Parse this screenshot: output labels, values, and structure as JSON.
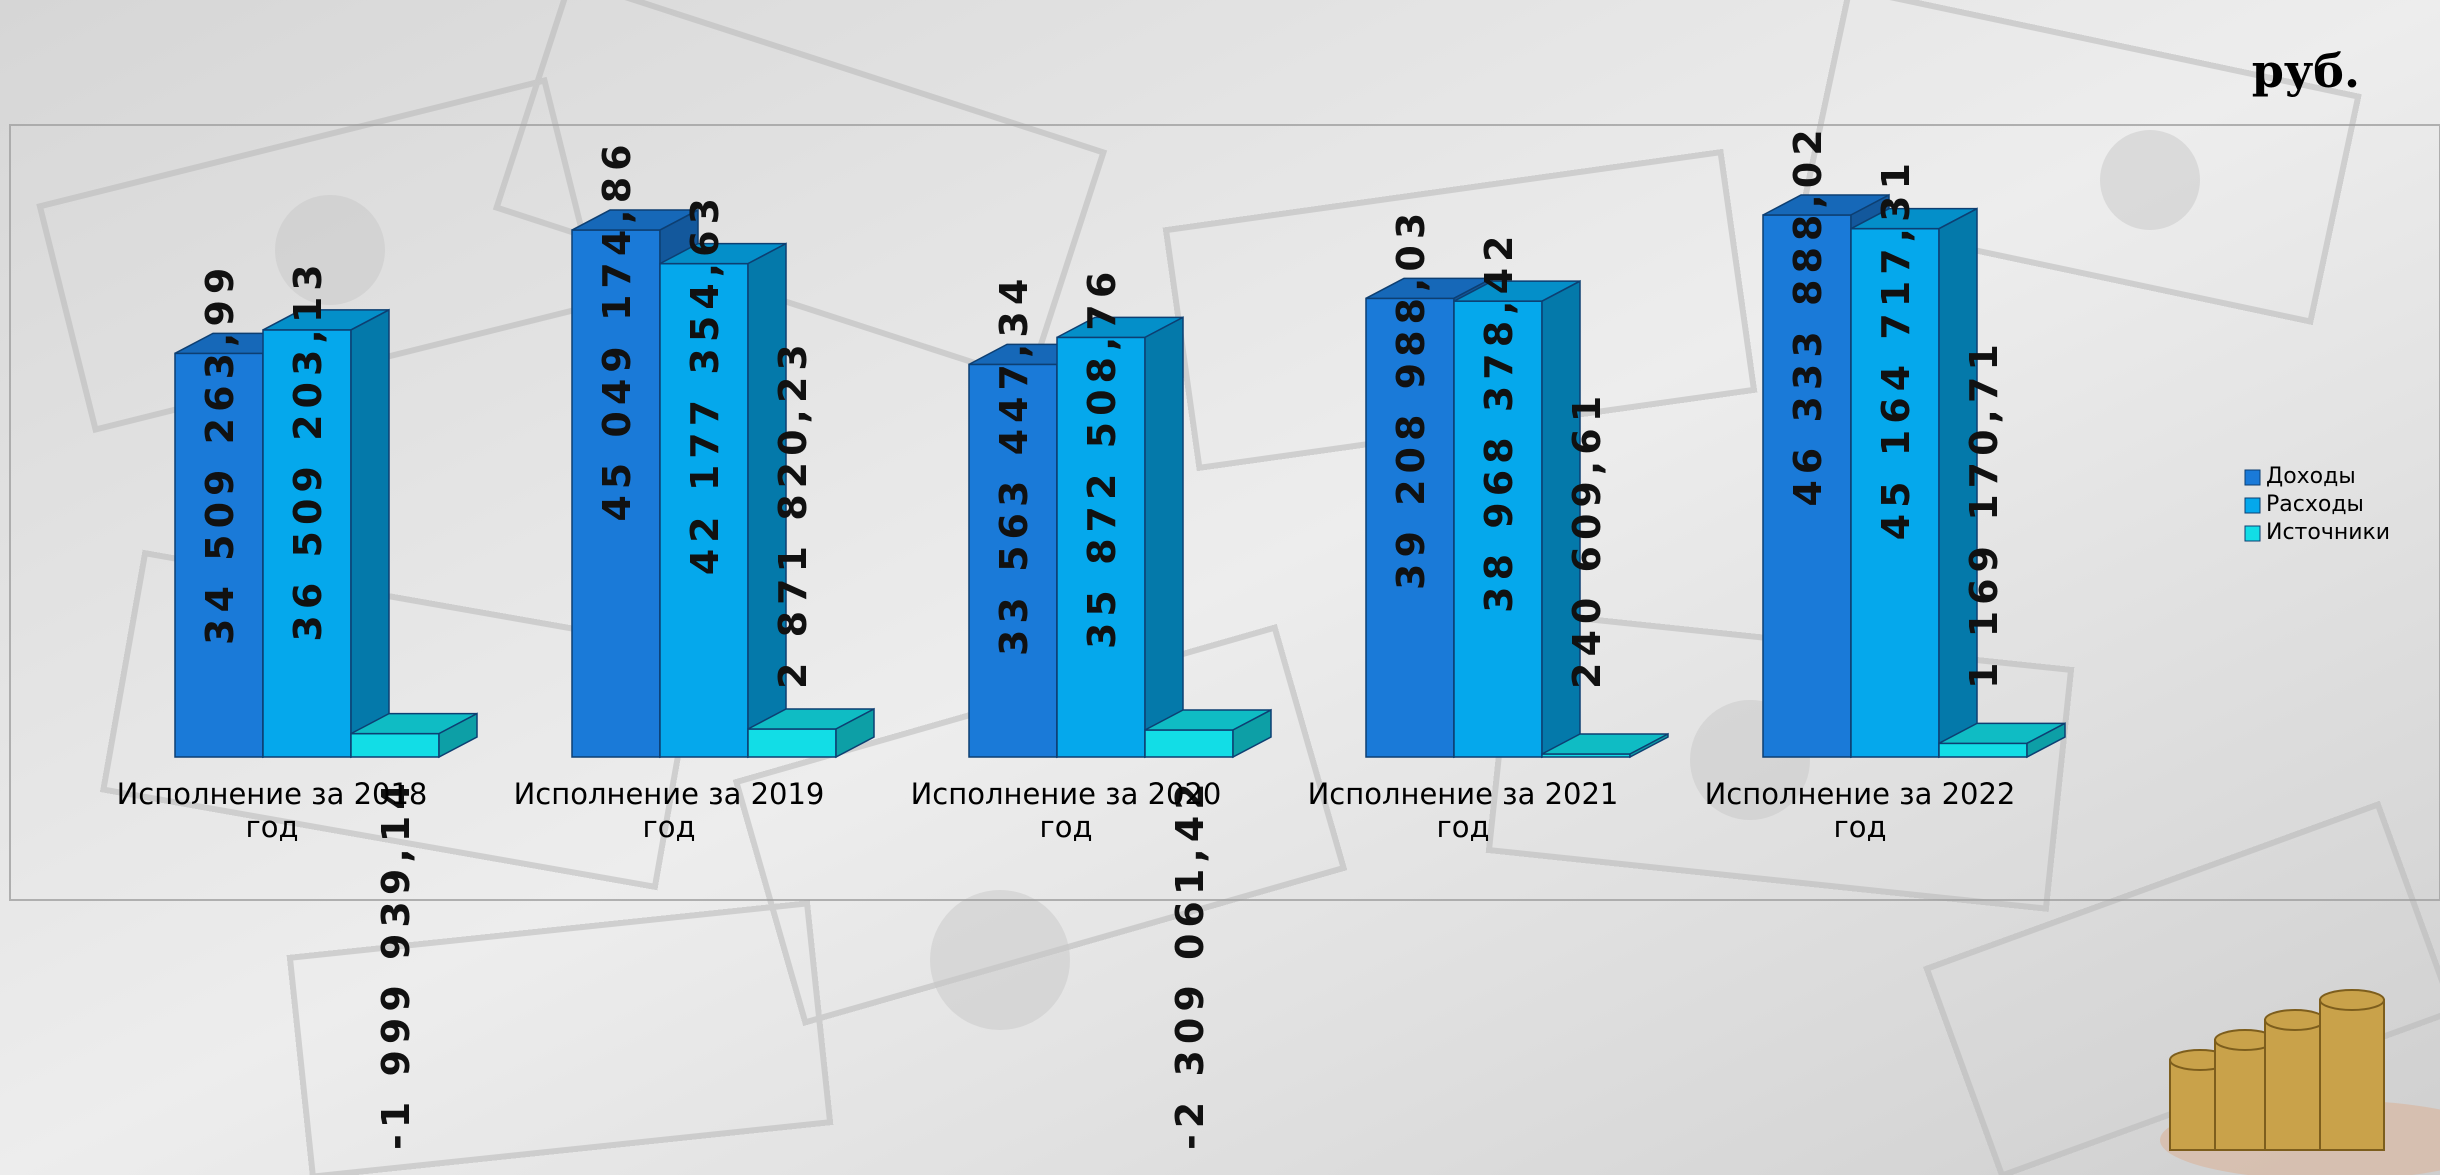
{
  "unit_label": "руб.",
  "chart_data": {
    "type": "bar",
    "categories": [
      [
        "Исполнение за 2018",
        "год"
      ],
      [
        "Исполнение за 2019",
        "год"
      ],
      [
        "Исполнение за 2020",
        "год"
      ],
      [
        "Исполнение за 2021",
        "год"
      ],
      [
        "Исполнение за 2022",
        "год"
      ]
    ],
    "series": [
      {
        "name": "Доходы",
        "color": "#1a7ad8",
        "values": [
          34509263.99,
          45049174.86,
          33563447.34,
          39208988.03,
          46333888.02
        ],
        "labels": [
          "34 509 263,99",
          "45 049 174,86",
          "33 563 447,34",
          "39 208 988,03",
          "46 333 888,02"
        ]
      },
      {
        "name": "Расходы",
        "color": "#05a8ec",
        "values": [
          36509203.13,
          42177354.63,
          35872508.76,
          38968378.42,
          45164717.31
        ],
        "labels": [
          "36 509 203,13",
          "42 177 354,63",
          "35 872 508,76",
          "38 968 378,42",
          "45 164 717,31"
        ]
      },
      {
        "name": "Источники",
        "color": "#12dde6",
        "values": [
          -1999939.14,
          2871820.23,
          -2309061.42,
          240609.61,
          1169170.71
        ],
        "labels": [
          "-1 999 939,14",
          "2 871 820,23",
          "-2 309 061,42",
          "240 609,61",
          "1 169 170,71"
        ]
      }
    ],
    "legend_position": "right",
    "grid": false
  }
}
